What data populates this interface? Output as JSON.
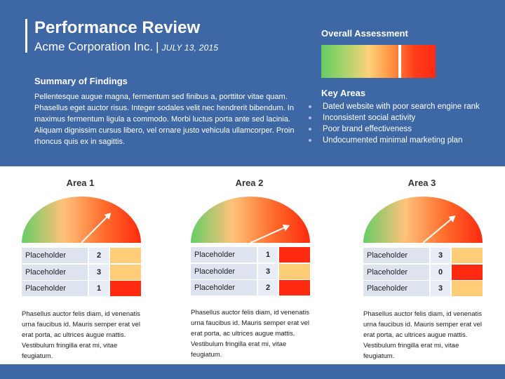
{
  "header": {
    "title": "Performance Review",
    "company": "Acme Corporation Inc.",
    "separator": "|",
    "date": "JULY 13, 2015"
  },
  "summary": {
    "heading": "Summary of Findings",
    "body": "Pellentesque augue magna, fermentum sed finibus a, porttitor vitae quam. Phasellus eget auctor risus. Integer sodales velit nec hendrerit bibendum. In maximus fermentum ligula a commodo. Morbi luctus porta ante sed lacinia. Aliquam dignissim cursus libero, vel ornare justo vehicula ullamcorper. Proin rhoncus quis ex in sagittis."
  },
  "overall": {
    "heading": "Overall Assessment",
    "level": 0.69
  },
  "key_areas": {
    "heading": "Key Areas",
    "items": [
      "Dated website with poor search engine rank",
      "Inconsistent social activity",
      "Poor brand effectiveness",
      "Undocumented minimal marketing plan"
    ]
  },
  "colors": {
    "header_bg": "#3e67a5",
    "red": "#ff2a10",
    "amber": "#ffcc77"
  },
  "areas": [
    {
      "title": "Area 1",
      "gauge_level": 0.74,
      "rows": [
        {
          "label": "Placeholder",
          "value": "2",
          "swatch": "#ffcc77"
        },
        {
          "label": "Placeholder",
          "value": "3",
          "swatch": "#ffcc77"
        },
        {
          "label": "Placeholder",
          "value": "1",
          "swatch": "#ff2a10"
        }
      ],
      "description": "Phasellus auctor felis diam, id venenatis urna faucibus id. Mauris semper erat vel erat porta, ac ultrices augue mattis. Vestibulum fringilla erat mi, vitae feugiatum."
    },
    {
      "title": "Area 2",
      "gauge_level": 0.86,
      "rows": [
        {
          "label": "Placeholder",
          "value": "1",
          "swatch": "#ff2a10"
        },
        {
          "label": "Placeholder",
          "value": "3",
          "swatch": "#ffcc77"
        },
        {
          "label": "Placeholder",
          "value": "2",
          "swatch": "#ff2a10"
        }
      ],
      "description": "Phasellus auctor felis diam, id venenatis urna faucibus id. Mauris semper erat vel erat porta, ac ultrices augue mattis. Vestibulum fringilla erat mi, vitae feugiatum."
    },
    {
      "title": "Area 3",
      "gauge_level": 0.77,
      "rows": [
        {
          "label": "Placeholder",
          "value": "3",
          "swatch": "#ffcc77"
        },
        {
          "label": "Placeholder",
          "value": "0",
          "swatch": "#ff2a10"
        },
        {
          "label": "Placeholder",
          "value": "3",
          "swatch": "#ffcc77"
        }
      ],
      "description": "Phasellus auctor felis diam, id venenatis urna faucibus id. Mauris semper erat vel erat porta, ac ultrices augue mattis. Vestibulum fringilla erat mi, vitae feugiatum."
    }
  ]
}
